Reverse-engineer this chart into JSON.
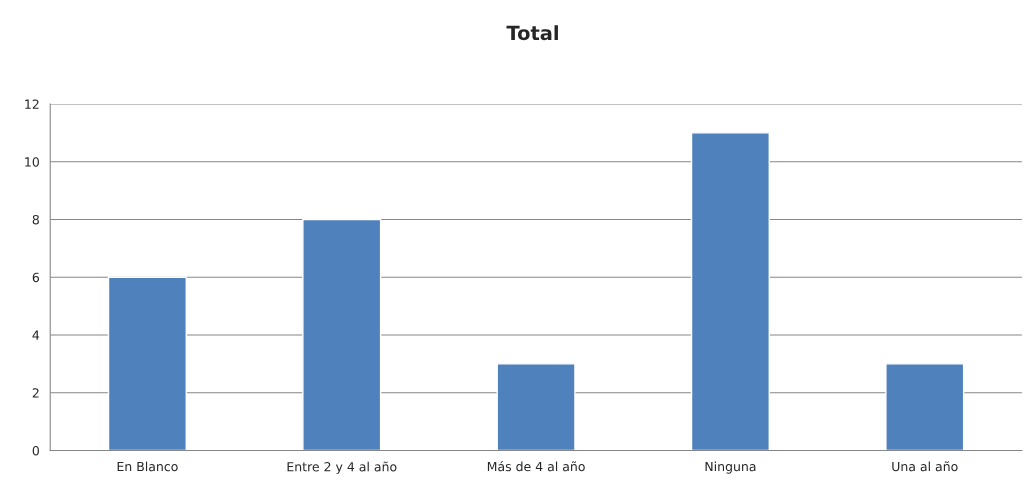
{
  "chart_data": {
    "type": "bar",
    "title": "Total",
    "categories": [
      "En Blanco",
      "Entre 2 y 4 al año",
      "Más de 4 al año",
      "Ninguna",
      "Una al año"
    ],
    "values": [
      6,
      8,
      3,
      11,
      3
    ],
    "color": "#4f81bd",
    "ylim": [
      0,
      12
    ],
    "yticks": [
      0,
      2,
      4,
      6,
      8,
      10,
      12
    ],
    "grid": "y",
    "legend": false
  }
}
